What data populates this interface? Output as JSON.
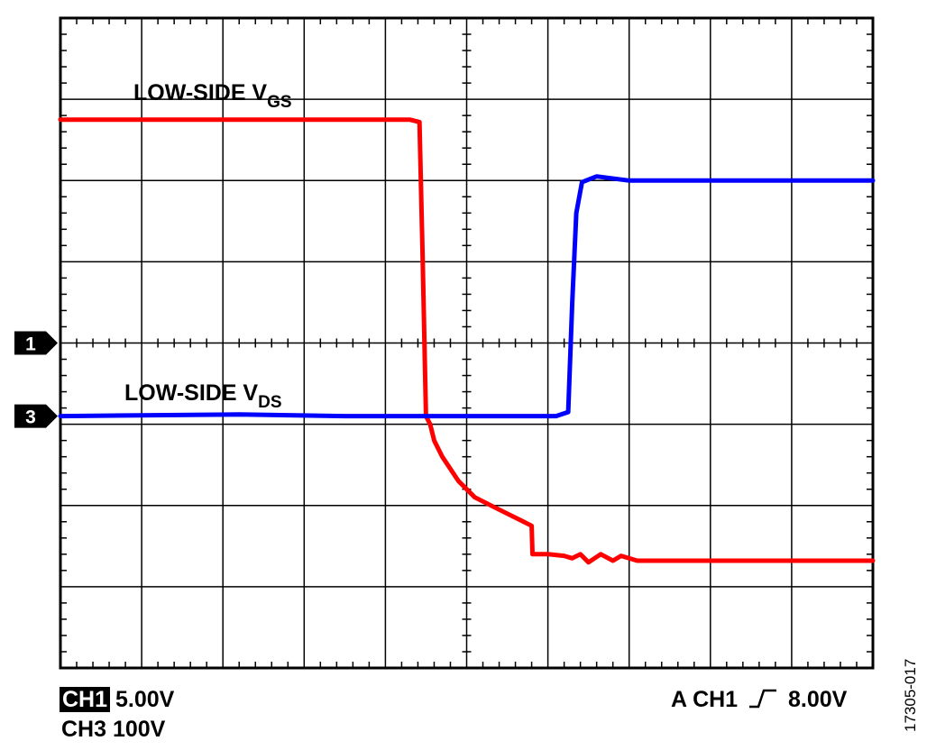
{
  "chart_data": {
    "type": "line",
    "title": "",
    "xlabel": "",
    "ylabel": "",
    "grid": true,
    "grid_divisions": {
      "x": 10,
      "y": 8
    },
    "xlim": [
      0,
      10
    ],
    "ylim": [
      -4,
      4
    ],
    "markers": [
      {
        "label": "1",
        "level_div": 0
      },
      {
        "label": "3",
        "level_div": -0.9
      }
    ],
    "series": [
      {
        "name": "LOW-SIDE V",
        "subscript": "GS",
        "color": "#ff0000",
        "x": [
          0,
          4.3,
          4.42,
          4.46,
          4.5,
          4.55,
          4.6,
          4.7,
          4.9,
          5.1,
          5.4,
          5.7,
          5.8,
          5.81,
          6.0,
          6.2,
          6.3,
          6.4,
          6.5,
          6.65,
          6.8,
          6.9,
          7.1,
          10
        ],
        "y": [
          2.75,
          2.75,
          2.72,
          1.0,
          -0.9,
          -1.0,
          -1.2,
          -1.4,
          -1.7,
          -1.9,
          -2.05,
          -2.2,
          -2.25,
          -2.6,
          -2.6,
          -2.62,
          -2.65,
          -2.6,
          -2.7,
          -2.6,
          -2.68,
          -2.62,
          -2.68,
          -2.68
        ]
      },
      {
        "name": "LOW-SIDE V",
        "subscript": "DS",
        "color": "#0000ff",
        "x": [
          0,
          2.2,
          3.5,
          6.1,
          6.25,
          6.3,
          6.35,
          6.42,
          6.6,
          7.0,
          7.5,
          7.8,
          8.0,
          10
        ],
        "y": [
          -0.9,
          -0.88,
          -0.9,
          -0.9,
          -0.85,
          0.5,
          1.6,
          1.98,
          2.05,
          2.0,
          2.0,
          2.0,
          2.0,
          2.0
        ]
      }
    ]
  },
  "readout": {
    "ch1_badge": "CH1",
    "ch1_scale": "5.00V",
    "ch3": "CH3 100V",
    "trigger_prefix": "A  CH1",
    "trigger_level": "8.00V"
  },
  "figure_id": "17305-017"
}
